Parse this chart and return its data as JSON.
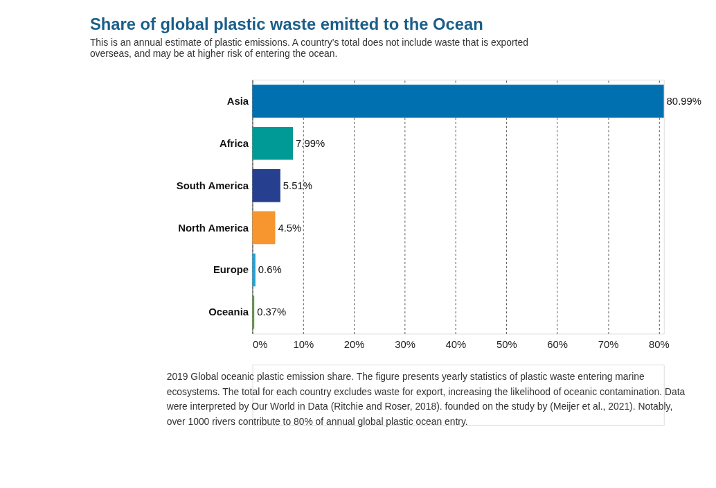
{
  "chart_data": {
    "type": "bar",
    "orientation": "horizontal",
    "title": "Share of global plastic waste emitted to the Ocean",
    "subtitle": "This is an annual estimate of plastic emissions. A country’s total does not include waste that is exported overseas, and may be at higher risk of entering the ocean.",
    "categories": [
      "Asia",
      "Africa",
      "South America",
      "North America",
      "Europe",
      "Oceania"
    ],
    "values": [
      80.99,
      7.99,
      5.51,
      4.5,
      0.6,
      0.37
    ],
    "colors": [
      "#0070b0",
      "#009a96",
      "#263f8f",
      "#f7962f",
      "#1fa3d8",
      "#5a9a3a"
    ],
    "value_labels": [
      "80.99%",
      "7.99%",
      "5.51%",
      "4.5%",
      "0.6%",
      "0.37%"
    ],
    "xlim": [
      0,
      81
    ],
    "xticks": [
      {
        "value": 0,
        "label": "0%"
      },
      {
        "value": 10,
        "label": "10%"
      },
      {
        "value": 20,
        "label": "20%"
      },
      {
        "value": 30,
        "label": "30%"
      },
      {
        "value": 40,
        "label": "40%"
      },
      {
        "value": 50,
        "label": "50%"
      },
      {
        "value": 60,
        "label": "60%"
      },
      {
        "value": 70,
        "label": "70%"
      },
      {
        "value": 80,
        "label": "80%"
      }
    ],
    "grid": "x",
    "annotations": [
      "2019 Global oceanic plastic emission share. The figure presents yearly statistics of plastic waste entering marine ecosystems. The total for each country excludes waste for export, increasing the likelihood of oceanic contamination. Data were interpreted by Our World in Data (Ritchie and Roser, 2018). founded on the study by (Meijer et al., 2021). Notably, over 1000 rivers contribute to 80% of annual global plastic ocean entry."
    ]
  }
}
